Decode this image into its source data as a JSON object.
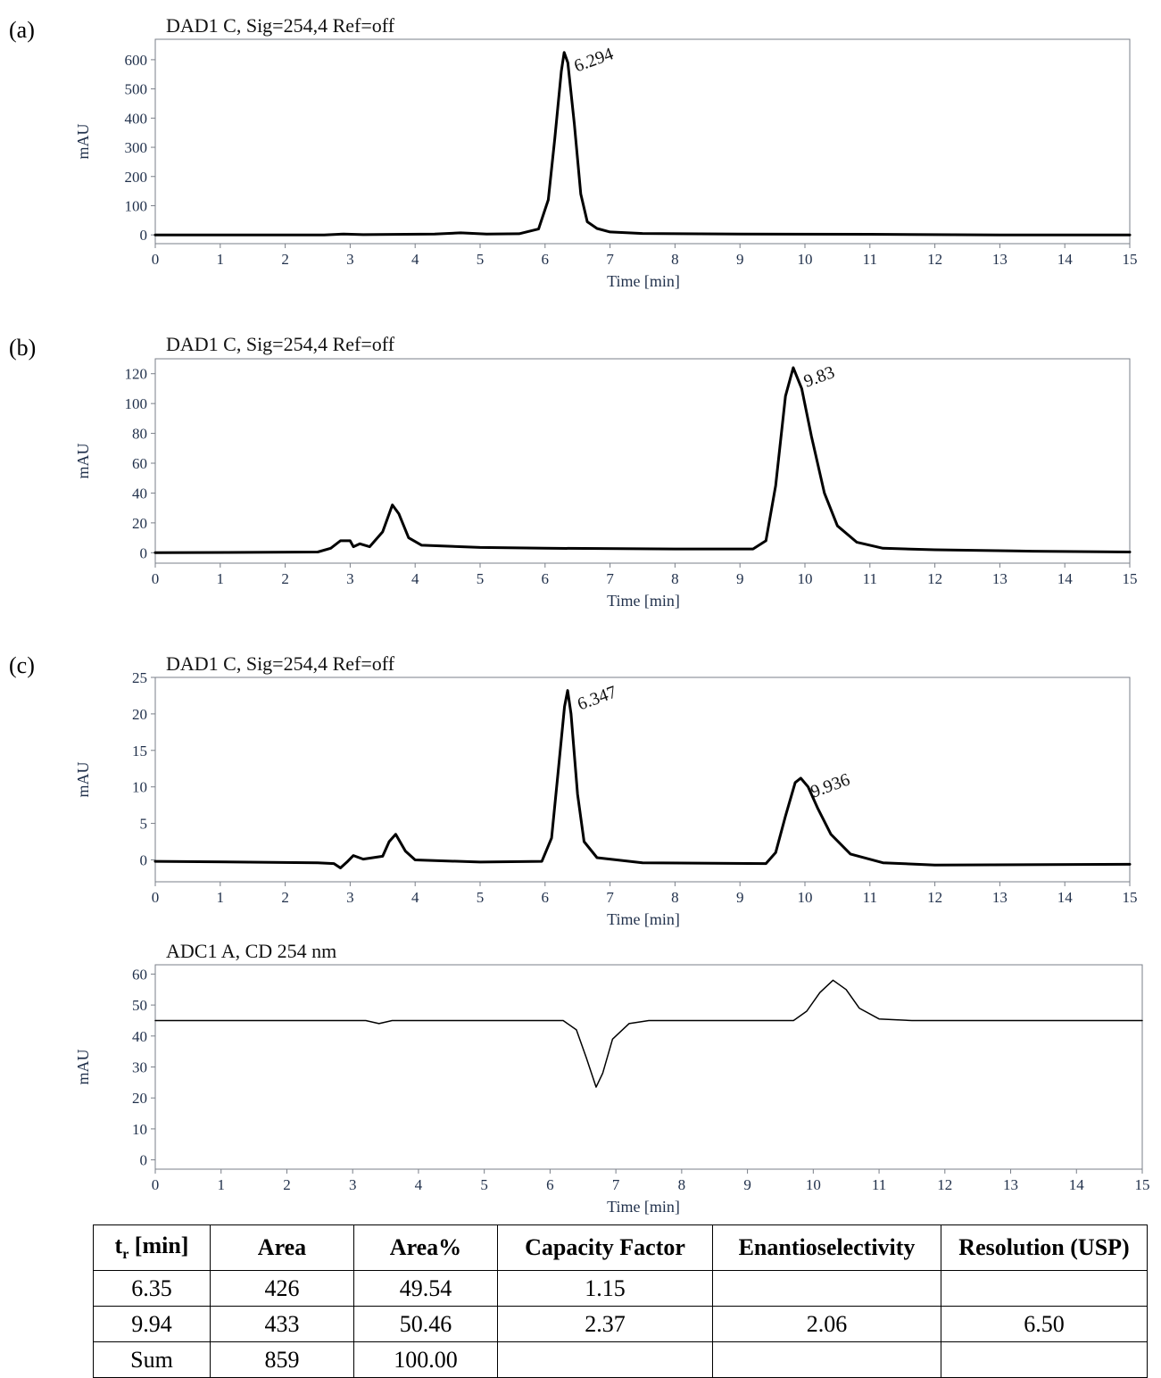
{
  "chart_data": [
    {
      "type": "line",
      "panel": "(a)",
      "title": "DAD1 C, Sig=254,4 Ref=off",
      "xlabel": "Time [min]",
      "ylabel": "mAU",
      "xlim": [
        0,
        15
      ],
      "ylim": [
        -30,
        670
      ],
      "xticks": [
        0,
        1,
        2,
        3,
        4,
        5,
        6,
        7,
        8,
        9,
        10,
        11,
        12,
        13,
        14,
        15
      ],
      "yticks": [
        0,
        100,
        200,
        300,
        400,
        500,
        600
      ],
      "series": [
        {
          "values": [
            [
              0,
              0
            ],
            [
              2.6,
              0
            ],
            [
              2.9,
              3
            ],
            [
              3.2,
              1
            ],
            [
              4.3,
              3
            ],
            [
              4.7,
              7
            ],
            [
              5.1,
              3
            ],
            [
              5.6,
              4
            ],
            [
              5.9,
              20
            ],
            [
              6.05,
              120
            ],
            [
              6.15,
              330
            ],
            [
              6.25,
              560
            ],
            [
              6.294,
              625
            ],
            [
              6.35,
              590
            ],
            [
              6.45,
              380
            ],
            [
              6.55,
              140
            ],
            [
              6.65,
              45
            ],
            [
              6.8,
              22
            ],
            [
              7.0,
              10
            ],
            [
              7.5,
              5
            ],
            [
              9,
              3
            ],
            [
              11,
              2
            ],
            [
              13,
              0
            ],
            [
              15,
              0
            ]
          ]
        }
      ],
      "peaks": [
        {
          "x": 6.294,
          "y": 625,
          "label": "6.294"
        }
      ]
    },
    {
      "type": "line",
      "panel": "(b)",
      "title": "DAD1 C, Sig=254,4 Ref=off",
      "xlabel": "Time [min]",
      "ylabel": "mAU",
      "xlim": [
        0,
        15
      ],
      "ylim": [
        -7,
        130
      ],
      "xticks": [
        0,
        1,
        2,
        3,
        4,
        5,
        6,
        7,
        8,
        9,
        10,
        11,
        12,
        13,
        14,
        15
      ],
      "yticks": [
        0,
        20,
        40,
        60,
        80,
        100,
        120
      ],
      "series": [
        {
          "values": [
            [
              0,
              0
            ],
            [
              2.5,
              0.5
            ],
            [
              2.7,
              3
            ],
            [
              2.85,
              8
            ],
            [
              3.0,
              8
            ],
            [
              3.05,
              4
            ],
            [
              3.15,
              6
            ],
            [
              3.3,
              4
            ],
            [
              3.5,
              14
            ],
            [
              3.65,
              32
            ],
            [
              3.75,
              26
            ],
            [
              3.9,
              10
            ],
            [
              4.1,
              5
            ],
            [
              5,
              3.5
            ],
            [
              6,
              3
            ],
            [
              8,
              2.5
            ],
            [
              9.2,
              2.5
            ],
            [
              9.4,
              8
            ],
            [
              9.55,
              45
            ],
            [
              9.7,
              105
            ],
            [
              9.82,
              124
            ],
            [
              9.95,
              110
            ],
            [
              10.1,
              78
            ],
            [
              10.3,
              40
            ],
            [
              10.5,
              18
            ],
            [
              10.8,
              7
            ],
            [
              11.2,
              3
            ],
            [
              12,
              2
            ],
            [
              13.5,
              1
            ],
            [
              15,
              0.5
            ]
          ]
        }
      ],
      "peaks": [
        {
          "x": 9.83,
          "y": 124,
          "label": "9.83"
        }
      ]
    },
    {
      "type": "line",
      "panel": "(c)",
      "title": "DAD1 C, Sig=254,4 Ref=off",
      "xlabel": "Time [min]",
      "ylabel": "mAU",
      "xlim": [
        0,
        15
      ],
      "ylim": [
        -3,
        25
      ],
      "xticks": [
        0,
        1,
        2,
        3,
        4,
        5,
        6,
        7,
        8,
        9,
        10,
        11,
        12,
        13,
        14,
        15
      ],
      "yticks": [
        0,
        5,
        10,
        15,
        20,
        25
      ],
      "series": [
        {
          "values": [
            [
              0,
              -0.2
            ],
            [
              2.5,
              -0.4
            ],
            [
              2.75,
              -0.5
            ],
            [
              2.85,
              -1.1
            ],
            [
              2.95,
              -0.3
            ],
            [
              3.05,
              0.6
            ],
            [
              3.2,
              0.1
            ],
            [
              3.5,
              0.5
            ],
            [
              3.6,
              2.5
            ],
            [
              3.7,
              3.5
            ],
            [
              3.85,
              1.2
            ],
            [
              4.0,
              0
            ],
            [
              5,
              -0.3
            ],
            [
              5.95,
              -0.2
            ],
            [
              6.1,
              3
            ],
            [
              6.2,
              12
            ],
            [
              6.3,
              21
            ],
            [
              6.347,
              23.2
            ],
            [
              6.4,
              20
            ],
            [
              6.5,
              9
            ],
            [
              6.6,
              2.5
            ],
            [
              6.8,
              0.3
            ],
            [
              7.5,
              -0.4
            ],
            [
              9.4,
              -0.5
            ],
            [
              9.55,
              1
            ],
            [
              9.7,
              6
            ],
            [
              9.85,
              10.6
            ],
            [
              9.936,
              11.2
            ],
            [
              10.05,
              10
            ],
            [
              10.2,
              7
            ],
            [
              10.4,
              3.5
            ],
            [
              10.7,
              0.8
            ],
            [
              11.2,
              -0.4
            ],
            [
              12,
              -0.7
            ],
            [
              15,
              -0.6
            ]
          ]
        }
      ],
      "peaks": [
        {
          "x": 6.347,
          "y": 23.2,
          "label": "6.347"
        },
        {
          "x": 9.936,
          "y": 11.2,
          "label": "9.936"
        }
      ]
    },
    {
      "type": "line",
      "panel": "",
      "title": "ADC1 A, CD 254 nm",
      "xlabel": "Time [min]",
      "ylabel": "mAU",
      "xlim": [
        0,
        15
      ],
      "ylim": [
        -3,
        63
      ],
      "xticks": [
        0,
        1,
        2,
        3,
        4,
        5,
        6,
        7,
        8,
        9,
        10,
        11,
        12,
        13,
        14,
        15
      ],
      "yticks": [
        0,
        10,
        20,
        30,
        40,
        50,
        60
      ],
      "series": [
        {
          "values": [
            [
              0,
              45
            ],
            [
              3.2,
              45
            ],
            [
              3.4,
              44
            ],
            [
              3.6,
              45
            ],
            [
              6.2,
              45
            ],
            [
              6.4,
              42
            ],
            [
              6.55,
              33
            ],
            [
              6.7,
              23.5
            ],
            [
              6.8,
              28
            ],
            [
              6.95,
              39
            ],
            [
              7.2,
              44
            ],
            [
              7.5,
              45
            ],
            [
              9.7,
              45
            ],
            [
              9.9,
              48
            ],
            [
              10.1,
              54
            ],
            [
              10.3,
              58
            ],
            [
              10.5,
              55
            ],
            [
              10.7,
              49
            ],
            [
              11,
              45.5
            ],
            [
              11.5,
              45
            ],
            [
              15,
              45
            ]
          ]
        }
      ],
      "peaks": []
    }
  ],
  "table": {
    "headers": [
      "t_r [min]",
      "Area",
      "Area%",
      "Capacity Factor",
      "Enantioselectivity",
      "Resolution (USP)"
    ],
    "header_tr_main": "t",
    "header_tr_sub": "r",
    "header_tr_rest": " [min]",
    "rows": [
      [
        "6.35",
        "426",
        "49.54",
        "1.15",
        "",
        ""
      ],
      [
        "9.94",
        "433",
        "50.46",
        "2.37",
        "2.06",
        "6.50"
      ],
      [
        "Sum",
        "859",
        "100.00",
        "",
        "",
        ""
      ]
    ]
  }
}
